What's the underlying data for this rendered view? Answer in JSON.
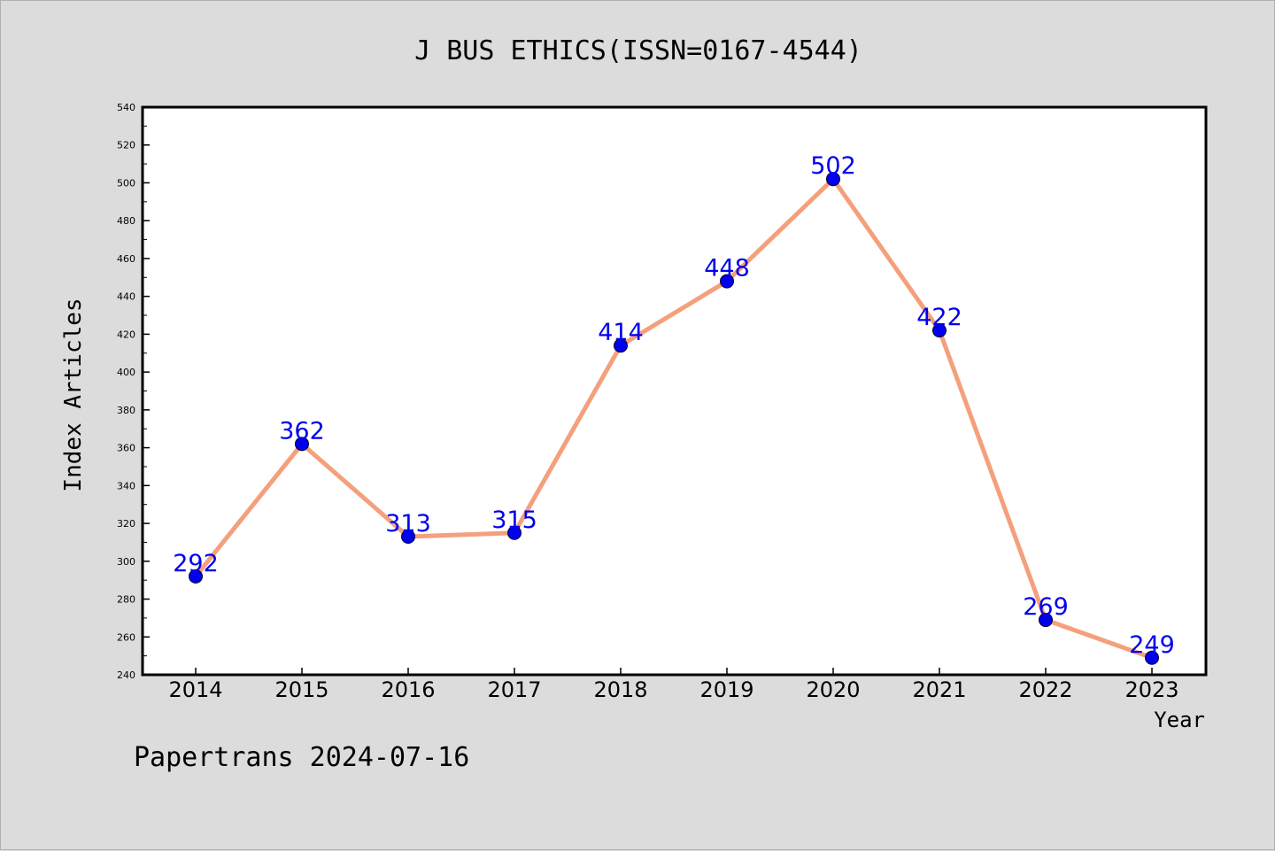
{
  "chart_data": {
    "type": "line",
    "title": "J BUS ETHICS(ISSN=0167-4544)",
    "xlabel": "Year",
    "ylabel": "Index Articles",
    "categories": [
      "2014",
      "2015",
      "2016",
      "2017",
      "2018",
      "2019",
      "2020",
      "2021",
      "2022",
      "2023"
    ],
    "series": [
      {
        "values": [
          292,
          362,
          313,
          315,
          414,
          448,
          502,
          422,
          269,
          249
        ]
      }
    ],
    "ylim": [
      240,
      540
    ],
    "yticks": [
      240,
      260,
      280,
      300,
      320,
      340,
      360,
      380,
      400,
      420,
      440,
      460,
      480,
      500,
      520,
      540
    ],
    "grid": false,
    "legend": "none",
    "colors": {
      "line": "#f4a07c",
      "marker": "#0000ee",
      "label": "#0000ee",
      "background": "#dcdcdc",
      "plot": "#ffffff"
    }
  },
  "footer": {
    "text": "Papertrans 2024-07-16"
  }
}
